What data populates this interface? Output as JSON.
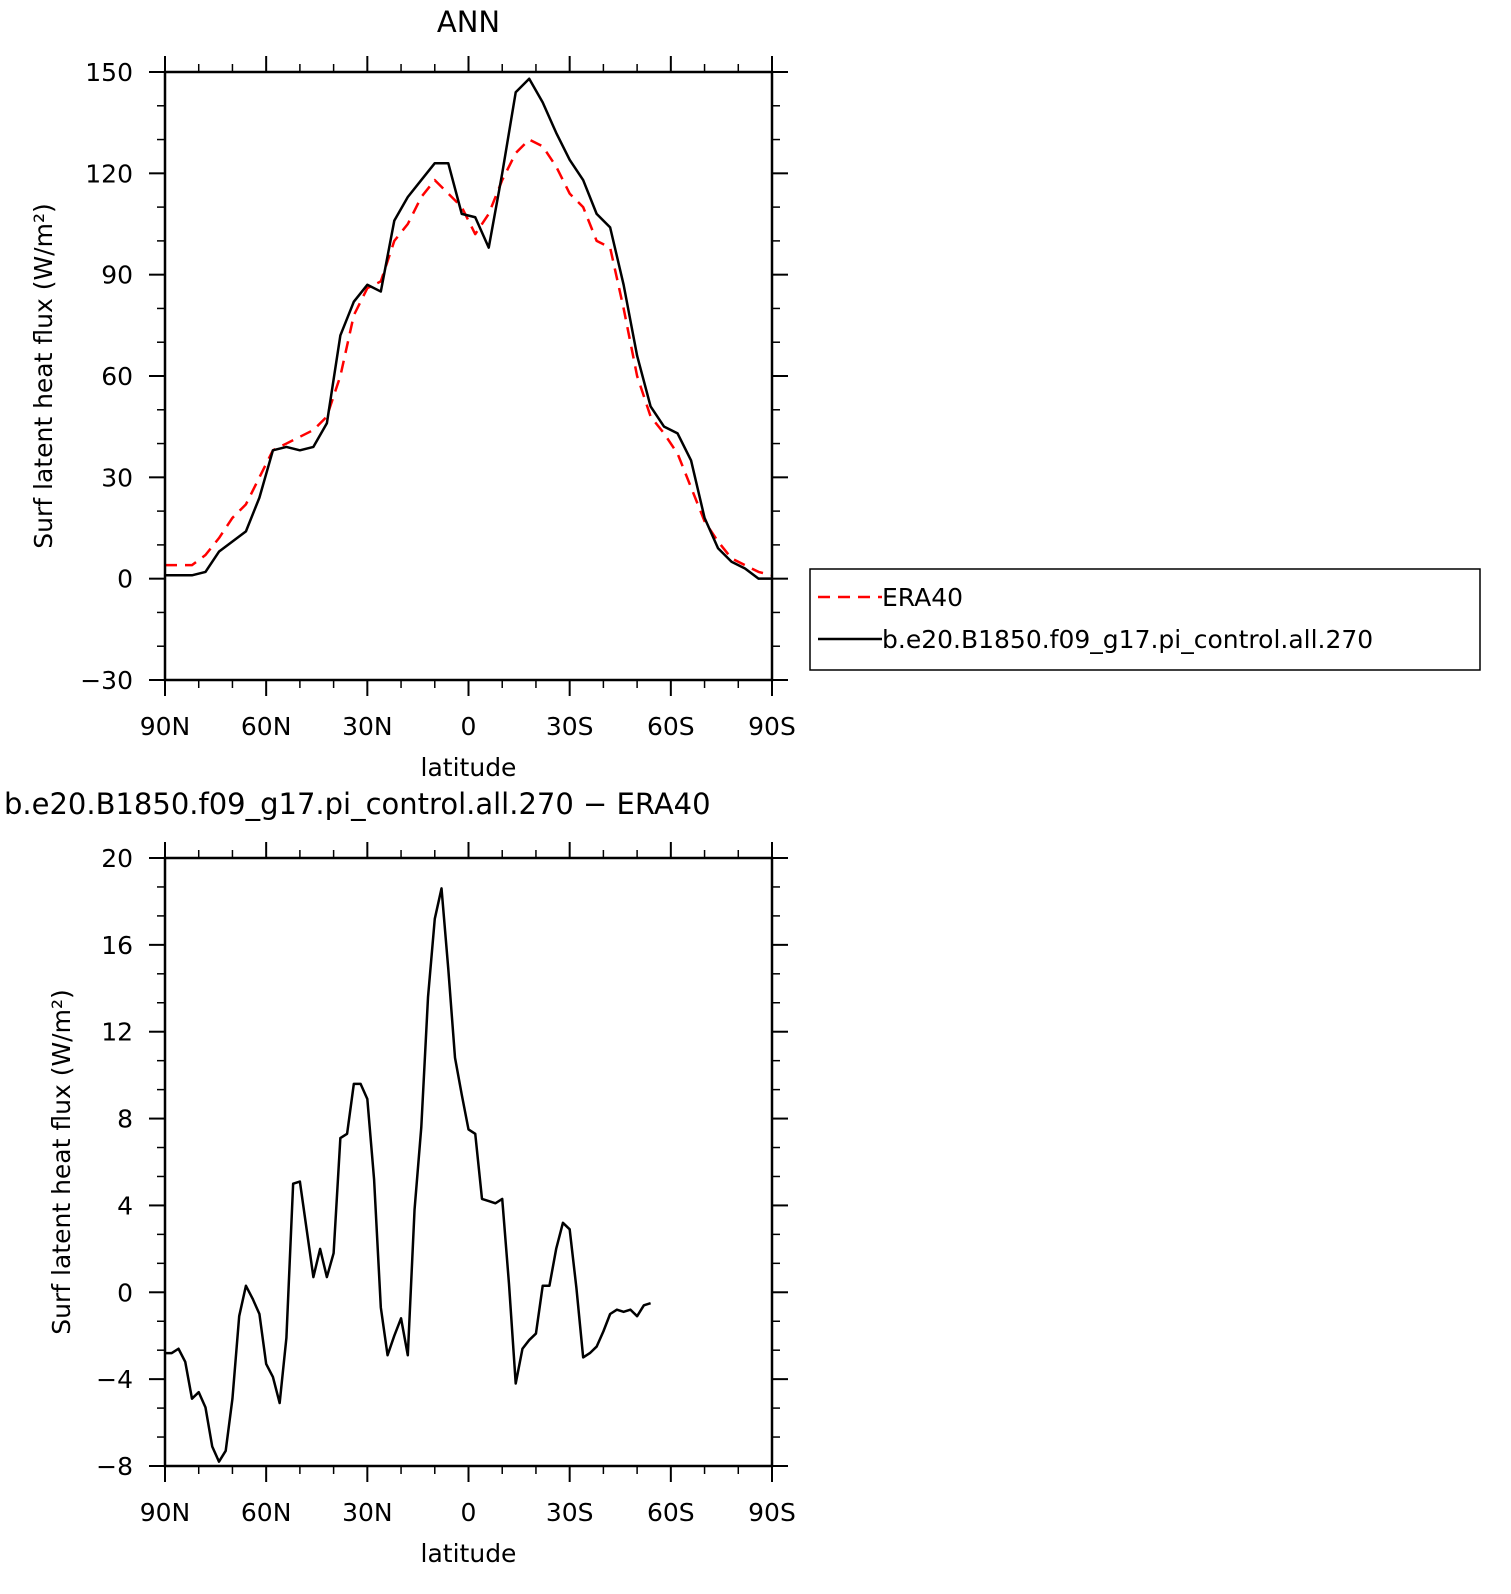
{
  "chart_data": [
    {
      "type": "line",
      "title": "ANN",
      "xlabel": "latitude",
      "ylabel": "Surf latent heat flux (W/m²)",
      "xlim": [
        90,
        -90
      ],
      "ylim": [
        -30,
        150
      ],
      "x_ticks": [
        {
          "value": 90,
          "label": "90N"
        },
        {
          "value": 60,
          "label": "60N"
        },
        {
          "value": 30,
          "label": "30N"
        },
        {
          "value": 0,
          "label": "0"
        },
        {
          "value": -30,
          "label": "30S"
        },
        {
          "value": -60,
          "label": "60S"
        },
        {
          "value": -90,
          "label": "90S"
        }
      ],
      "y_ticks": [
        {
          "value": 150,
          "label": "150"
        },
        {
          "value": 120,
          "label": "120"
        },
        {
          "value": 90,
          "label": "90"
        },
        {
          "value": 60,
          "label": "60"
        },
        {
          "value": 30,
          "label": "30"
        },
        {
          "value": 0,
          "label": "0"
        },
        {
          "value": -30,
          "label": "−30"
        }
      ],
      "grid": false,
      "legend_position": "right",
      "series": [
        {
          "name": "ERA40",
          "color": "#ff0000",
          "dash": "dashed",
          "points": [
            [
              90,
              4
            ],
            [
              86,
              4
            ],
            [
              82,
              4
            ],
            [
              78,
              7
            ],
            [
              74,
              12
            ],
            [
              70,
              18
            ],
            [
              66,
              22
            ],
            [
              62,
              30
            ],
            [
              58,
              38
            ],
            [
              54,
              40
            ],
            [
              50,
              42
            ],
            [
              46,
              44
            ],
            [
              42,
              48
            ],
            [
              38,
              60
            ],
            [
              34,
              78
            ],
            [
              30,
              86
            ],
            [
              26,
              88
            ],
            [
              22,
              100
            ],
            [
              18,
              105
            ],
            [
              14,
              113
            ],
            [
              10,
              118
            ],
            [
              6,
              114
            ],
            [
              2,
              110
            ],
            [
              -2,
              102
            ],
            [
              -6,
              108
            ],
            [
              -10,
              118
            ],
            [
              -14,
              126
            ],
            [
              -18,
              130
            ],
            [
              -22,
              128
            ],
            [
              -26,
              122
            ],
            [
              -30,
              114
            ],
            [
              -34,
              110
            ],
            [
              -38,
              100
            ],
            [
              -42,
              98
            ],
            [
              -46,
              80
            ],
            [
              -50,
              60
            ],
            [
              -54,
              48
            ],
            [
              -58,
              43
            ],
            [
              -62,
              37
            ],
            [
              -66,
              27
            ],
            [
              -70,
              17
            ],
            [
              -74,
              11
            ],
            [
              -78,
              6
            ],
            [
              -82,
              4
            ],
            [
              -86,
              2
            ],
            [
              -90,
              1
            ]
          ]
        },
        {
          "name": "b.e20.B1850.f09_g17.pi_control.all.270",
          "color": "#000000",
          "dash": "solid",
          "points": [
            [
              90,
              1
            ],
            [
              86,
              1
            ],
            [
              82,
              1
            ],
            [
              78,
              2
            ],
            [
              74,
              8
            ],
            [
              70,
              11
            ],
            [
              66,
              14
            ],
            [
              62,
              24
            ],
            [
              58,
              38
            ],
            [
              54,
              39
            ],
            [
              50,
              38
            ],
            [
              46,
              39
            ],
            [
              42,
              46
            ],
            [
              38,
              72
            ],
            [
              34,
              82
            ],
            [
              30,
              87
            ],
            [
              26,
              85
            ],
            [
              22,
              106
            ],
            [
              18,
              113
            ],
            [
              14,
              118
            ],
            [
              10,
              123
            ],
            [
              6,
              123
            ],
            [
              2,
              108
            ],
            [
              -2,
              107
            ],
            [
              -6,
              98
            ],
            [
              -10,
              120
            ],
            [
              -14,
              144
            ],
            [
              -18,
              148
            ],
            [
              -22,
              141
            ],
            [
              -26,
              132
            ],
            [
              -30,
              124
            ],
            [
              -34,
              118
            ],
            [
              -38,
              108
            ],
            [
              -42,
              104
            ],
            [
              -46,
              87
            ],
            [
              -50,
              66
            ],
            [
              -54,
              51
            ],
            [
              -58,
              45
            ],
            [
              -62,
              43
            ],
            [
              -66,
              35
            ],
            [
              -70,
              18
            ],
            [
              -74,
              9
            ],
            [
              -78,
              5
            ],
            [
              -82,
              3
            ],
            [
              -86,
              0
            ],
            [
              -90,
              0
            ]
          ]
        }
      ]
    },
    {
      "type": "line",
      "title": "b.e20.B1850.f09_g17.pi_control.all.270 − ERA40",
      "xlabel": "latitude",
      "ylabel": "Surf latent heat flux (W/m²)",
      "xlim": [
        90,
        -90
      ],
      "ylim": [
        -8,
        20
      ],
      "x_ticks": [
        {
          "value": 90,
          "label": "90N"
        },
        {
          "value": 60,
          "label": "60N"
        },
        {
          "value": 30,
          "label": "30N"
        },
        {
          "value": 0,
          "label": "0"
        },
        {
          "value": -30,
          "label": "30S"
        },
        {
          "value": -60,
          "label": "60S"
        },
        {
          "value": -90,
          "label": "90S"
        }
      ],
      "y_ticks": [
        {
          "value": 20,
          "label": "20"
        },
        {
          "value": 16,
          "label": "16"
        },
        {
          "value": 12,
          "label": "12"
        },
        {
          "value": 8,
          "label": "8"
        },
        {
          "value": 4,
          "label": "4"
        },
        {
          "value": 0,
          "label": "0"
        },
        {
          "value": -4,
          "label": "−4"
        },
        {
          "value": -8,
          "label": "−8"
        }
      ],
      "grid": false,
      "series": [
        {
          "color": "#000000",
          "dash": "solid",
          "points": [
            [
              90,
              -2.8
            ],
            [
              88,
              -2.8
            ],
            [
              86,
              -2.6
            ],
            [
              84,
              -3.2
            ],
            [
              82,
              -4.9
            ],
            [
              80,
              -4.6
            ],
            [
              78,
              -5.3
            ],
            [
              76,
              -7.1
            ],
            [
              74,
              -7.8
            ],
            [
              72,
              -7.3
            ],
            [
              70,
              -4.9
            ],
            [
              68,
              -1.1
            ],
            [
              66,
              0.3
            ],
            [
              64,
              -0.3
            ],
            [
              62,
              -1.0
            ],
            [
              60,
              -3.3
            ],
            [
              58,
              -3.9
            ],
            [
              56,
              -5.1
            ],
            [
              54,
              -2.1
            ],
            [
              52,
              5.0
            ],
            [
              50,
              5.1
            ],
            [
              48,
              2.9
            ],
            [
              46,
              0.7
            ],
            [
              44,
              2.0
            ],
            [
              42,
              0.7
            ],
            [
              40,
              1.8
            ],
            [
              38,
              7.1
            ],
            [
              36,
              7.3
            ],
            [
              34,
              9.6
            ],
            [
              32,
              9.6
            ],
            [
              30,
              8.9
            ],
            [
              28,
              5.2
            ],
            [
              26,
              -0.7
            ],
            [
              24,
              -2.9
            ],
            [
              22,
              -2.0
            ],
            [
              20,
              -1.2
            ],
            [
              18,
              -2.9
            ],
            [
              16,
              3.8
            ],
            [
              14,
              7.6
            ],
            [
              12,
              13.6
            ],
            [
              10,
              17.2
            ],
            [
              8,
              18.6
            ],
            [
              6,
              14.9
            ],
            [
              4,
              10.8
            ],
            [
              2,
              9.1
            ],
            [
              0,
              7.5
            ],
            [
              -2,
              7.3
            ],
            [
              -4,
              4.3
            ],
            [
              -6,
              4.2
            ],
            [
              -8,
              4.1
            ],
            [
              -10,
              4.3
            ],
            [
              -12,
              0.4
            ],
            [
              -14,
              -4.2
            ],
            [
              -16,
              -2.6
            ],
            [
              -18,
              -2.2
            ],
            [
              -20,
              -1.9
            ],
            [
              -22,
              0.3
            ],
            [
              -24,
              0.3
            ],
            [
              -26,
              2.0
            ],
            [
              -28,
              3.2
            ],
            [
              -30,
              2.9
            ],
            [
              -32,
              0.2
            ],
            [
              -34,
              -3.0
            ],
            [
              -36,
              -2.8
            ],
            [
              -38,
              -2.5
            ],
            [
              -40,
              -1.8
            ],
            [
              -42,
              -1.0
            ],
            [
              -44,
              -0.8
            ],
            [
              -46,
              -0.9
            ],
            [
              -48,
              -0.8
            ],
            [
              -50,
              -1.1
            ],
            [
              -52,
              -0.6
            ],
            [
              -54,
              -0.5
            ]
          ]
        }
      ]
    }
  ]
}
